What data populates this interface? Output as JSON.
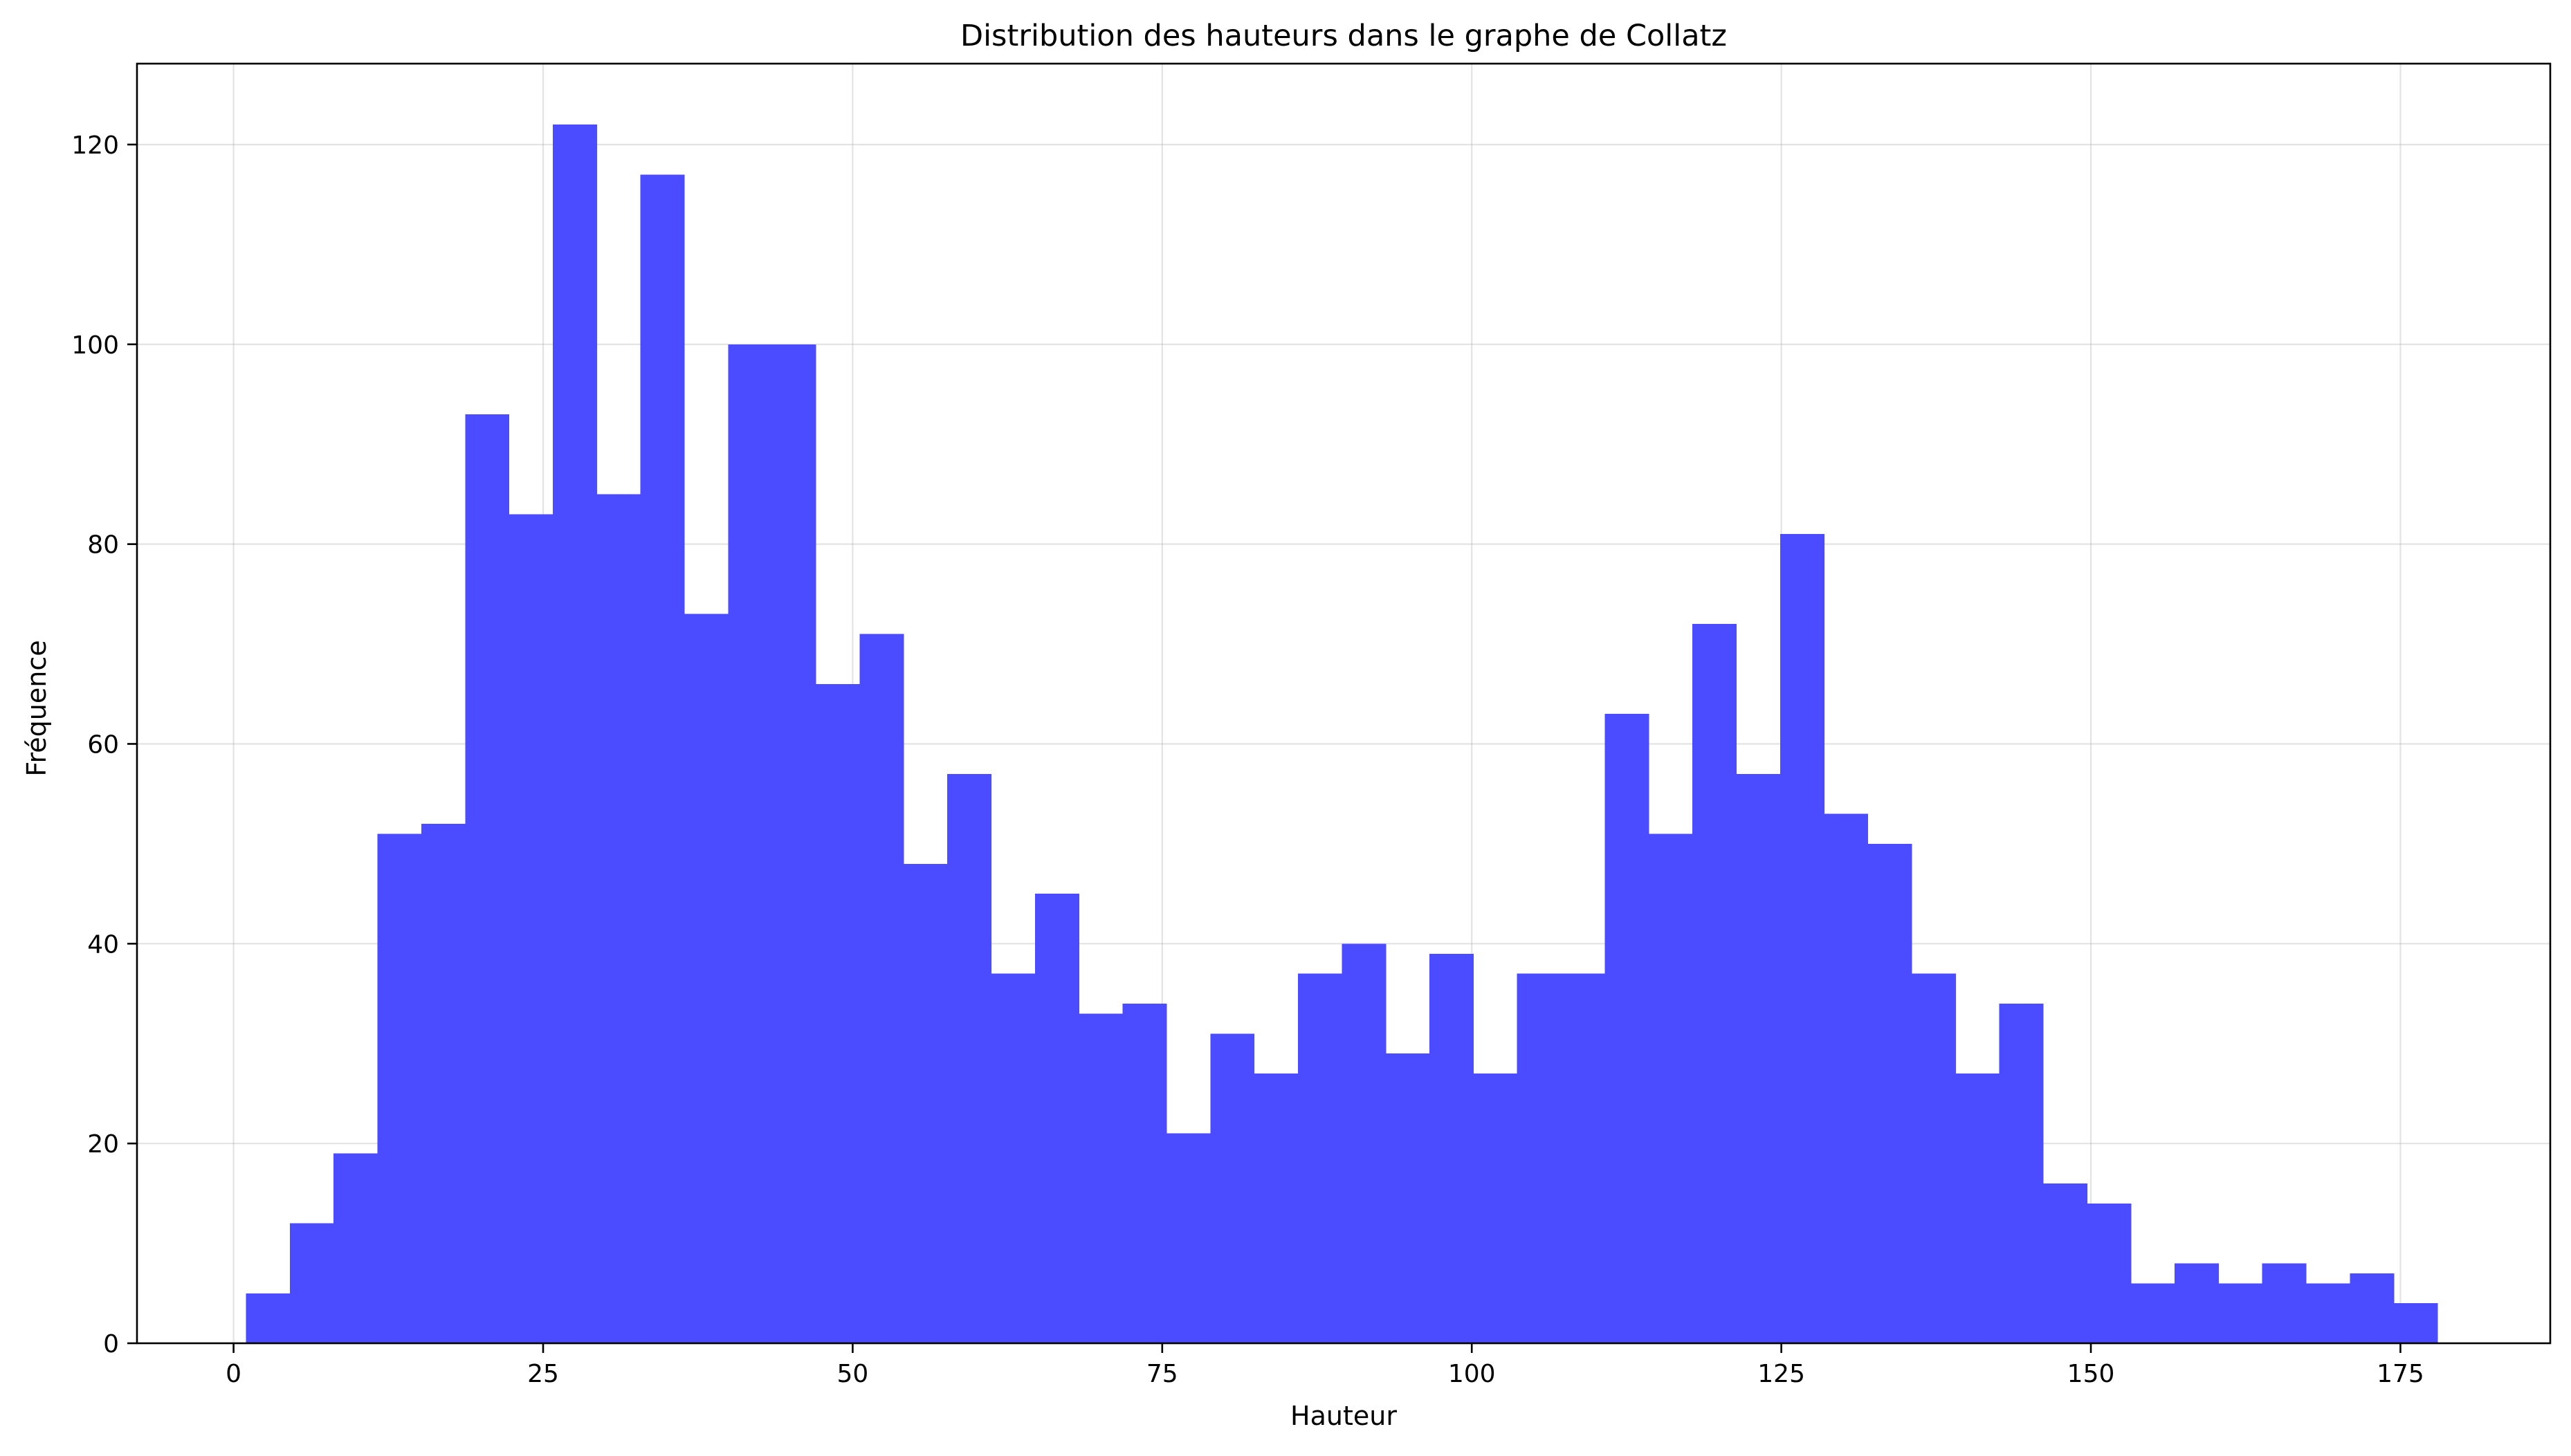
{
  "chart_data": {
    "type": "bar",
    "title": "Distribution des hauteurs dans le graphe de Collatz",
    "xlabel": "Hauteur",
    "ylabel": "Fréquence",
    "xlim": [
      -7.8,
      187.1
    ],
    "ylim": [
      0,
      128.1
    ],
    "xticks": [
      0,
      25,
      50,
      75,
      100,
      125,
      150,
      175
    ],
    "yticks": [
      0,
      20,
      40,
      60,
      80,
      100,
      120
    ],
    "grid": true,
    "bar_color": "#4b4bff",
    "bins": {
      "start": 1.0,
      "width": 3.54,
      "counts": [
        5,
        12,
        19,
        51,
        52,
        93,
        83,
        122,
        85,
        117,
        73,
        100,
        100,
        66,
        71,
        48,
        57,
        37,
        45,
        33,
        34,
        21,
        31,
        27,
        37,
        40,
        29,
        39,
        27,
        37,
        37,
        63,
        51,
        72,
        57,
        81,
        53,
        50,
        37,
        27,
        34,
        16,
        14,
        6,
        8,
        6,
        8,
        6,
        7,
        4
      ]
    }
  }
}
